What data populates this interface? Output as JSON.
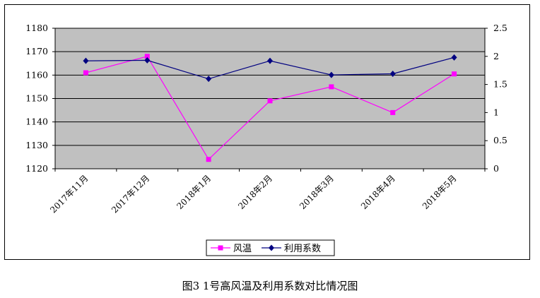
{
  "caption": "图3 1号高风温及利用系数对比情况图",
  "colors": {
    "plot_bg": "#C0C0C0",
    "gridline": "#000000",
    "wind_temp": "#FF00FF",
    "utilization": "#000080"
  },
  "chart_data": {
    "type": "line",
    "title": "",
    "categories": [
      "2017年11月",
      "2017年12月",
      "2018年1月",
      "2018年2月",
      "2018年3月",
      "2018年4月",
      "2018年5月"
    ],
    "y_left": {
      "ylim": [
        1120,
        1180
      ],
      "ticks": [
        "1120",
        "1130",
        "1140",
        "1150",
        "1160",
        "1170",
        "1180"
      ]
    },
    "y_right": {
      "ylim": [
        0,
        2.5
      ],
      "ticks": [
        "0",
        "0.5",
        "1",
        "1.5",
        "2",
        "2.5"
      ]
    },
    "grid": true,
    "legend_position": "bottom-center",
    "series": [
      {
        "name": "风温",
        "axis": "left",
        "marker": "square",
        "color": "#FF00FF",
        "values": [
          1161,
          1168,
          1124,
          1149,
          1155,
          1144,
          1160.5
        ]
      },
      {
        "name": "利用系数",
        "axis": "right",
        "marker": "diamond",
        "color": "#000080",
        "values": [
          1.92,
          1.93,
          1.6,
          1.92,
          1.67,
          1.69,
          1.98
        ]
      }
    ]
  }
}
